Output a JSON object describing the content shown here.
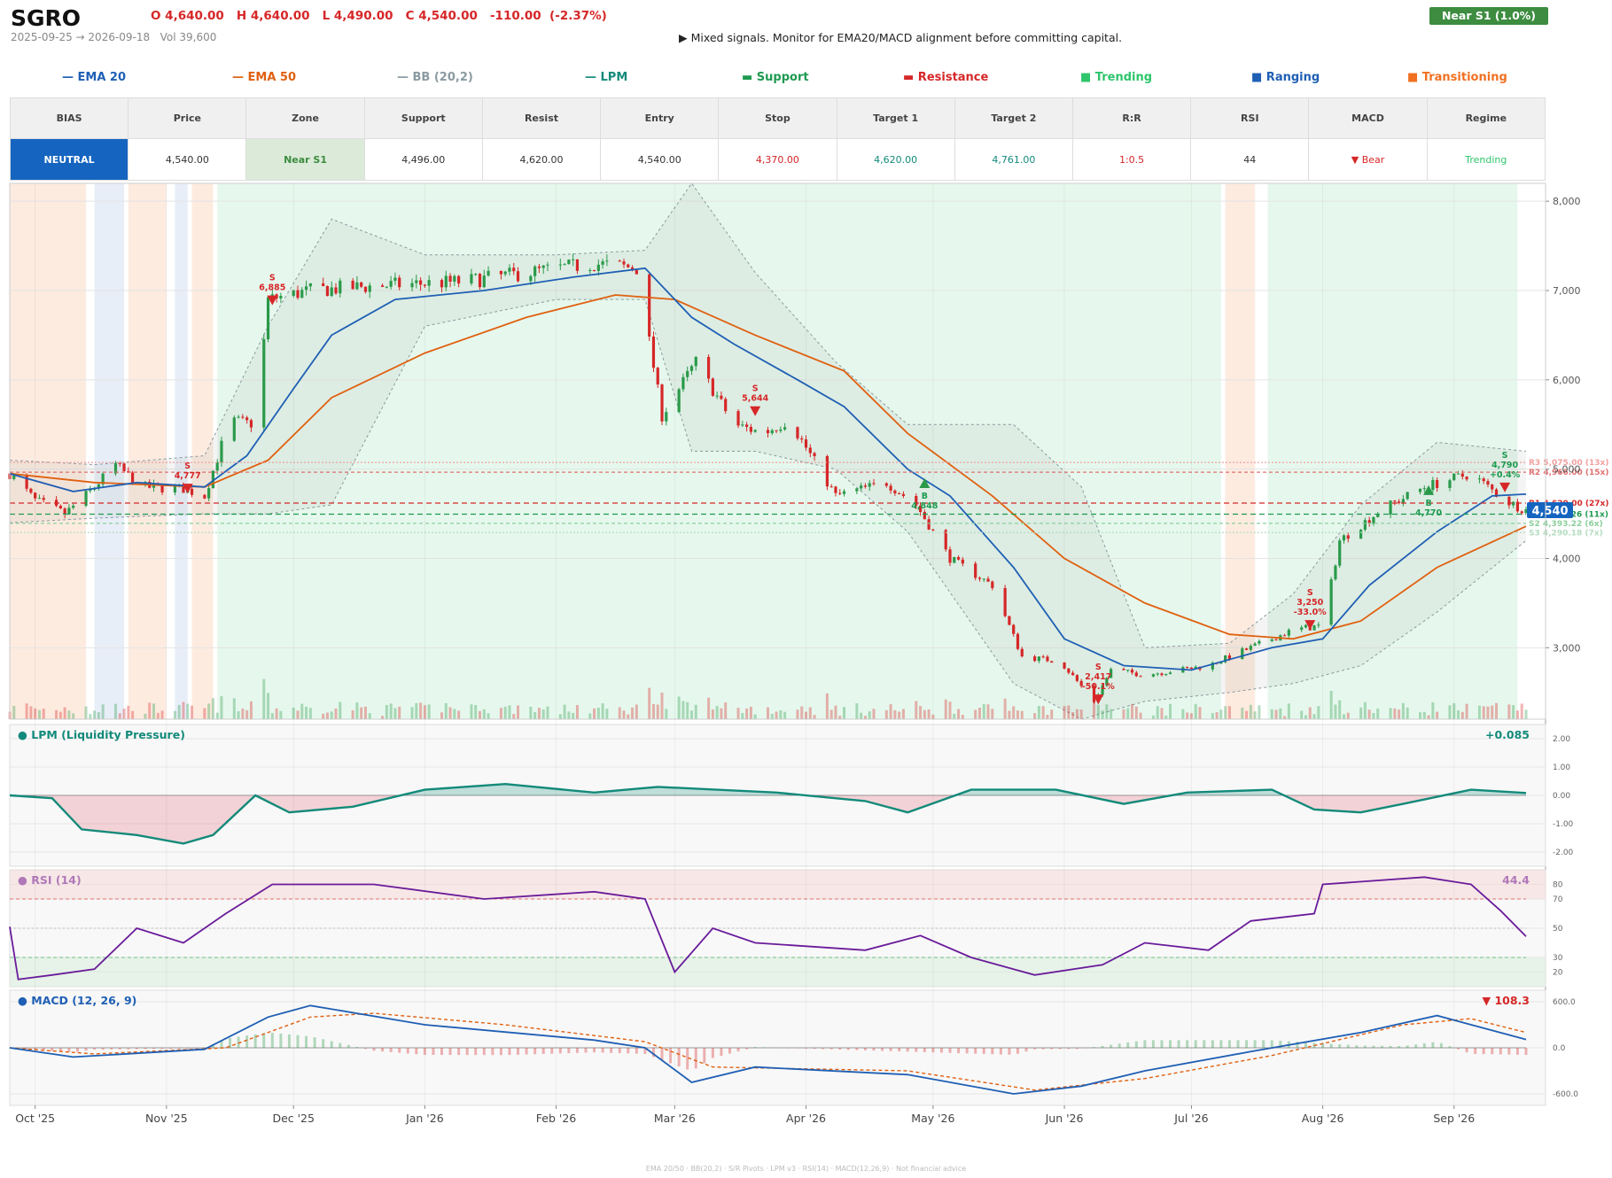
{
  "header": {
    "ticker": "SGRO",
    "ohlc": "O 4,640.00   H 4,640.00   L 4,490.00   C 4,540.00   -110.00  (-2.37%)",
    "range": "2025-09-25 → 2026-09-18   Vol 39,600",
    "signal": "▶  Mixed signals. Monitor for EMA20/MACD alignment before committing capital.",
    "badge": "Near S1  (1.0%)"
  },
  "legend": [
    {
      "label": "— EMA 20",
      "color": "#1f5fb4"
    },
    {
      "label": "— EMA 50",
      "color": "#e06010"
    },
    {
      "label": "— BB (20,2)",
      "color": "#8a9aa0"
    },
    {
      "label": "— LPM",
      "color": "#138a7a"
    },
    {
      "label": "▬  Support",
      "color": "#1e9a50"
    },
    {
      "label": "▬  Resistance",
      "color": "#d62728"
    },
    {
      "label": "■  Trending",
      "color": "#2ec56b"
    },
    {
      "label": "■  Ranging",
      "color": "#1f5fb4"
    },
    {
      "label": "■  Transitioning",
      "color": "#f07020"
    }
  ],
  "table": {
    "headers": [
      "BIAS",
      "Price",
      "Zone",
      "Support",
      "Resist",
      "Entry",
      "Stop",
      "Target 1",
      "Target 2",
      "R:R",
      "RSI",
      "MACD",
      "Regime"
    ],
    "values": [
      "NEUTRAL",
      "4,540.00",
      "Near S1",
      "4,496.00",
      "4,620.00",
      "4,540.00",
      "4,370.00",
      "4,620.00",
      "4,761.00",
      "1:0.5",
      "44",
      "▼ Bear",
      "Trending"
    ],
    "colors": [
      "#ffffff",
      "#333333",
      "#3d8c40",
      "#333333",
      "#333333",
      "#333333",
      "#d62728",
      "#138a7a",
      "#138a7a",
      "#d62728",
      "#333333",
      "#d62728",
      "#2ec56b"
    ],
    "backgrounds": [
      "#1565c0",
      "#ffffff",
      "#dcebd9",
      "#ffffff",
      "#ffffff",
      "#ffffff",
      "#ffffff",
      "#ffffff",
      "#ffffff",
      "#ffffff",
      "#ffffff",
      "#ffffff",
      "#ffffff"
    ]
  },
  "footer": "EMA 20/50  ·  BB(20,2)  ·  S/R Pivots  ·  LPM v3  ·  RSI(14)  ·  MACD(12,26,9)  ·  Not financial advice",
  "chart_data": [
    {
      "type": "candlestick",
      "ylim": [
        2200,
        8200
      ],
      "y_ticks": [
        "8,000",
        "7,000",
        "6,000",
        "5,000",
        "4,000",
        "3,000"
      ],
      "x_ticks": [
        "Oct '25",
        "Nov '25",
        "Dec '25",
        "Jan '26",
        "Feb '26",
        "Mar '26",
        "Apr '26",
        "May '26",
        "Jun '26",
        "Jul '26",
        "Aug '26",
        "Sep '26"
      ],
      "x_dates": [
        "2025-10-01",
        "2025-11-01",
        "2025-12-01",
        "2026-01-01",
        "2026-02-01",
        "2026-03-01",
        "2026-04-01",
        "2026-05-01",
        "2026-06-01",
        "2026-07-01",
        "2026-08-01",
        "2026-09-01"
      ],
      "start_date": "2025-09-25",
      "end_date": "2026-09-18",
      "close_path": [
        [
          "2025-09-25",
          4950
        ],
        [
          "2025-10-01",
          4650
        ],
        [
          "2025-10-08",
          4500
        ],
        [
          "2025-10-14",
          4750
        ],
        [
          "2025-10-20",
          5050
        ],
        [
          "2025-10-26",
          4800
        ],
        [
          "2025-11-05",
          4780
        ],
        [
          "2025-11-10",
          4700
        ],
        [
          "2025-11-16",
          5550
        ],
        [
          "2025-11-22",
          5500
        ],
        [
          "2025-11-25",
          6900
        ],
        [
          "2025-12-05",
          7000
        ],
        [
          "2025-12-20",
          7050
        ],
        [
          "2026-01-10",
          7100
        ],
        [
          "2026-01-25",
          7200
        ],
        [
          "2026-02-10",
          7300
        ],
        [
          "2026-02-20",
          7250
        ],
        [
          "2026-02-26",
          5600
        ],
        [
          "2026-03-06",
          6200
        ],
        [
          "2026-03-15",
          5500
        ],
        [
          "2026-03-22",
          5400
        ],
        [
          "2026-03-28",
          5550
        ],
        [
          "2026-04-08",
          4700
        ],
        [
          "2026-04-20",
          4850
        ],
        [
          "2026-04-27",
          4600
        ],
        [
          "2026-05-05",
          4000
        ],
        [
          "2026-05-15",
          3700
        ],
        [
          "2026-05-22",
          2900
        ],
        [
          "2026-05-31",
          2850
        ],
        [
          "2026-06-08",
          2400
        ],
        [
          "2026-06-12",
          2750
        ],
        [
          "2026-06-20",
          2700
        ],
        [
          "2026-06-28",
          2750
        ],
        [
          "2026-07-05",
          2800
        ],
        [
          "2026-07-15",
          3000
        ],
        [
          "2026-07-25",
          3200
        ],
        [
          "2026-08-01",
          3250
        ],
        [
          "2026-08-05",
          4200
        ],
        [
          "2026-08-15",
          4550
        ],
        [
          "2026-08-25",
          4800
        ],
        [
          "2026-09-05",
          4950
        ],
        [
          "2026-09-13",
          4650
        ],
        [
          "2026-09-18",
          4540
        ]
      ],
      "ema20_path": [
        [
          "2025-09-25",
          4950
        ],
        [
          "2025-10-10",
          4750
        ],
        [
          "2025-10-25",
          4850
        ],
        [
          "2025-11-10",
          4800
        ],
        [
          "2025-11-20",
          5150
        ],
        [
          "2025-12-01",
          5900
        ],
        [
          "2025-12-10",
          6500
        ],
        [
          "2025-12-25",
          6900
        ],
        [
          "2026-01-15",
          7000
        ],
        [
          "2026-02-05",
          7150
        ],
        [
          "2026-02-22",
          7250
        ],
        [
          "2026-03-05",
          6700
        ],
        [
          "2026-03-15",
          6400
        ],
        [
          "2026-03-30",
          6000
        ],
        [
          "2026-04-10",
          5700
        ],
        [
          "2026-04-25",
          5000
        ],
        [
          "2026-05-05",
          4700
        ],
        [
          "2026-05-20",
          3900
        ],
        [
          "2026-06-01",
          3100
        ],
        [
          "2026-06-15",
          2800
        ],
        [
          "2026-07-01",
          2750
        ],
        [
          "2026-07-20",
          3000
        ],
        [
          "2026-08-01",
          3100
        ],
        [
          "2026-08-12",
          3700
        ],
        [
          "2026-08-28",
          4300
        ],
        [
          "2026-09-10",
          4700
        ],
        [
          "2026-09-18",
          4720
        ]
      ],
      "ema50_path": [
        [
          "2025-09-25",
          4950
        ],
        [
          "2025-10-15",
          4850
        ],
        [
          "2025-11-10",
          4800
        ],
        [
          "2025-11-25",
          5100
        ],
        [
          "2025-12-10",
          5800
        ],
        [
          "2026-01-01",
          6300
        ],
        [
          "2026-01-25",
          6700
        ],
        [
          "2026-02-15",
          6950
        ],
        [
          "2026-03-01",
          6900
        ],
        [
          "2026-03-20",
          6500
        ],
        [
          "2026-04-10",
          6100
        ],
        [
          "2026-04-25",
          5400
        ],
        [
          "2026-05-15",
          4700
        ],
        [
          "2026-06-01",
          4000
        ],
        [
          "2026-06-20",
          3500
        ],
        [
          "2026-07-10",
          3150
        ],
        [
          "2026-07-25",
          3100
        ],
        [
          "2026-08-10",
          3300
        ],
        [
          "2026-08-28",
          3900
        ],
        [
          "2026-09-18",
          4360
        ]
      ],
      "bb_upper_path": [
        [
          "2025-09-25",
          5100
        ],
        [
          "2025-10-15",
          5050
        ],
        [
          "2025-11-10",
          5150
        ],
        [
          "2025-11-25",
          6600
        ],
        [
          "2025-12-10",
          7800
        ],
        [
          "2026-01-01",
          7400
        ],
        [
          "2026-02-01",
          7400
        ],
        [
          "2026-02-22",
          7450
        ],
        [
          "2026-03-05",
          8200
        ],
        [
          "2026-03-20",
          7200
        ],
        [
          "2026-04-08",
          6200
        ],
        [
          "2026-04-25",
          5500
        ],
        [
          "2026-05-20",
          5500
        ],
        [
          "2026-06-05",
          4800
        ],
        [
          "2026-06-20",
          3000
        ],
        [
          "2026-07-10",
          3050
        ],
        [
          "2026-07-25",
          3600
        ],
        [
          "2026-08-10",
          4600
        ],
        [
          "2026-08-28",
          5300
        ],
        [
          "2026-09-18",
          5200
        ]
      ],
      "bb_lower_path": [
        [
          "2025-09-25",
          4400
        ],
        [
          "2025-10-15",
          4450
        ],
        [
          "2025-11-10",
          4500
        ],
        [
          "2025-11-25",
          4500
        ],
        [
          "2025-12-10",
          4600
        ],
        [
          "2026-01-01",
          6600
        ],
        [
          "2026-02-01",
          6900
        ],
        [
          "2026-02-22",
          6900
        ],
        [
          "2026-03-05",
          5200
        ],
        [
          "2026-03-20",
          5200
        ],
        [
          "2026-04-08",
          5000
        ],
        [
          "2026-04-25",
          4300
        ],
        [
          "2026-05-20",
          2600
        ],
        [
          "2026-06-05",
          2200
        ],
        [
          "2026-06-20",
          2400
        ],
        [
          "2026-07-10",
          2500
        ],
        [
          "2026-07-25",
          2600
        ],
        [
          "2026-08-10",
          2800
        ],
        [
          "2026-08-28",
          3400
        ],
        [
          "2026-09-18",
          4200
        ]
      ],
      "regimes": [
        [
          "2025-09-25",
          "2025-10-13",
          "Transitioning"
        ],
        [
          "2025-10-15",
          "2025-10-22",
          "Ranging"
        ],
        [
          "2025-10-23",
          "2025-11-01",
          "Transitioning"
        ],
        [
          "2025-11-03",
          "2025-11-06",
          "Ranging"
        ],
        [
          "2025-11-07",
          "2025-11-12",
          "Transitioning"
        ],
        [
          "2025-11-13",
          "2026-07-08",
          "Trending"
        ],
        [
          "2026-07-09",
          "2026-07-16",
          "Transitioning"
        ],
        [
          "2026-07-19",
          "2026-09-16",
          "Trending"
        ]
      ],
      "levels": [
        {
          "label": "R3 5,075.00 (13x)",
          "y": 5075,
          "color": "#f0a0a0",
          "dash": "2,2"
        },
        {
          "label": "R2 4,966.00 (15x)",
          "y": 4966,
          "color": "#e07070",
          "dash": "4,3"
        },
        {
          "label": "R1 4,620.00 (27x)",
          "y": 4620,
          "color": "#d62728",
          "dash": "6,4"
        },
        {
          "label": "S1 4,496.26 (11x)",
          "y": 4496,
          "color": "#1e9a50",
          "dash": "6,4"
        },
        {
          "label": "S2 4,393.22 (6x)",
          "y": 4393,
          "color": "#8ccf9c",
          "dash": "4,3"
        },
        {
          "label": "S3 4,290.18 (7x)",
          "y": 4290,
          "color": "#b5dcc0",
          "dash": "2,2"
        }
      ],
      "last_price": "4,540",
      "last_price_value": 4540,
      "markers": [
        {
          "date": "2025-11-06",
          "y": 4777,
          "text": "S\n4,777",
          "side": "sell"
        },
        {
          "date": "2025-11-26",
          "y": 6885,
          "text": "S\n6,885",
          "side": "sell"
        },
        {
          "date": "2026-03-20",
          "y": 5644,
          "text": "S\n5,644",
          "side": "sell"
        },
        {
          "date": "2026-04-29",
          "y": 4848,
          "text": "B\n4,848",
          "side": "buy"
        },
        {
          "date": "2026-06-09",
          "y": 2417,
          "text": "S\n2,417\n-50.1%",
          "side": "sell"
        },
        {
          "date": "2026-07-29",
          "y": 3250,
          "text": "S\n3,250\n-33.0%",
          "side": "sell"
        },
        {
          "date": "2026-08-26",
          "y": 4770,
          "text": "B\n4,770",
          "side": "buy"
        },
        {
          "date": "2026-09-13",
          "y": 4790,
          "text": "S\n4,790\n+0.4%",
          "side": "sell-win"
        }
      ]
    },
    {
      "type": "area",
      "title": "● LPM (Liquidity Pressure)",
      "last_value": "+0.085",
      "ylim": [
        -2.5,
        2.5
      ],
      "y_ticks": [
        "2.00",
        "1.00",
        "0.00",
        "-1.00",
        "-2.00"
      ],
      "series_path": [
        [
          "2025-09-25",
          0.0
        ],
        [
          "2025-10-05",
          -0.1
        ],
        [
          "2025-10-12",
          -1.2
        ],
        [
          "2025-10-25",
          -1.4
        ],
        [
          "2025-11-05",
          -1.7
        ],
        [
          "2025-11-12",
          -1.4
        ],
        [
          "2025-11-22",
          0.0
        ],
        [
          "2025-11-30",
          -0.6
        ],
        [
          "2025-12-15",
          -0.4
        ],
        [
          "2026-01-01",
          0.2
        ],
        [
          "2026-01-20",
          0.4
        ],
        [
          "2026-02-10",
          0.1
        ],
        [
          "2026-02-25",
          0.3
        ],
        [
          "2026-03-25",
          0.1
        ],
        [
          "2026-04-15",
          -0.2
        ],
        [
          "2026-04-25",
          -0.6
        ],
        [
          "2026-05-10",
          0.2
        ],
        [
          "2026-05-30",
          0.2
        ],
        [
          "2026-06-15",
          -0.3
        ],
        [
          "2026-06-30",
          0.1
        ],
        [
          "2026-07-20",
          0.2
        ],
        [
          "2026-07-30",
          -0.5
        ],
        [
          "2026-08-10",
          -0.6
        ],
        [
          "2026-08-20",
          -0.3
        ],
        [
          "2026-09-05",
          0.2
        ],
        [
          "2026-09-18",
          0.085
        ]
      ]
    },
    {
      "type": "line",
      "title": "● RSI (14)",
      "last_value": "44.4",
      "ylim": [
        10,
        90
      ],
      "y_ticks": [
        "80",
        "70",
        "50",
        "30",
        "20"
      ],
      "series_path": [
        [
          "2025-09-25",
          51
        ],
        [
          "2025-09-27",
          15
        ],
        [
          "2025-10-05",
          18
        ],
        [
          "2025-10-15",
          22
        ],
        [
          "2025-10-25",
          50
        ],
        [
          "2025-11-05",
          40
        ],
        [
          "2025-11-15",
          60
        ],
        [
          "2025-11-26",
          80
        ],
        [
          "2025-12-20",
          80
        ],
        [
          "2026-01-15",
          70
        ],
        [
          "2026-02-10",
          75
        ],
        [
          "2026-02-22",
          70
        ],
        [
          "2026-03-01",
          20
        ],
        [
          "2026-03-10",
          50
        ],
        [
          "2026-03-20",
          40
        ],
        [
          "2026-04-15",
          35
        ],
        [
          "2026-04-28",
          45
        ],
        [
          "2026-05-10",
          30
        ],
        [
          "2026-05-25",
          18
        ],
        [
          "2026-06-10",
          25
        ],
        [
          "2026-06-20",
          40
        ],
        [
          "2026-07-05",
          35
        ],
        [
          "2026-07-15",
          55
        ],
        [
          "2026-07-30",
          60
        ],
        [
          "2026-08-01",
          80
        ],
        [
          "2026-08-25",
          85
        ],
        [
          "2026-09-05",
          80
        ],
        [
          "2026-09-12",
          62
        ],
        [
          "2026-09-18",
          44.4
        ]
      ]
    },
    {
      "type": "line",
      "title": "● MACD (12, 26, 9)",
      "last_value": "▼ 108.3",
      "ylim": [
        -750,
        750
      ],
      "y_ticks": [
        "600.0",
        "0.0",
        "-600.0"
      ],
      "series_path": [
        [
          "2025-09-25",
          0
        ],
        [
          "2025-10-10",
          -120
        ],
        [
          "2025-11-10",
          -20
        ],
        [
          "2025-11-25",
          400
        ],
        [
          "2025-12-05",
          550
        ],
        [
          "2026-01-01",
          300
        ],
        [
          "2026-02-10",
          100
        ],
        [
          "2026-02-22",
          0
        ],
        [
          "2026-03-05",
          -450
        ],
        [
          "2026-03-20",
          -250
        ],
        [
          "2026-04-25",
          -350
        ],
        [
          "2026-05-20",
          -600
        ],
        [
          "2026-06-05",
          -500
        ],
        [
          "2026-06-20",
          -300
        ],
        [
          "2026-07-15",
          -50
        ],
        [
          "2026-08-10",
          200
        ],
        [
          "2026-08-28",
          420
        ],
        [
          "2026-09-18",
          108
        ]
      ],
      "signal_path": [
        [
          "2025-09-25",
          0
        ],
        [
          "2025-10-15",
          -80
        ],
        [
          "2025-11-15",
          0
        ],
        [
          "2025-12-05",
          400
        ],
        [
          "2025-12-20",
          450
        ],
        [
          "2026-01-20",
          300
        ],
        [
          "2026-02-22",
          80
        ],
        [
          "2026-03-10",
          -250
        ],
        [
          "2026-04-25",
          -300
        ],
        [
          "2026-05-25",
          -550
        ],
        [
          "2026-06-20",
          -400
        ],
        [
          "2026-07-20",
          -100
        ],
        [
          "2026-08-20",
          300
        ],
        [
          "2026-09-05",
          380
        ],
        [
          "2026-09-18",
          200
        ]
      ]
    }
  ]
}
